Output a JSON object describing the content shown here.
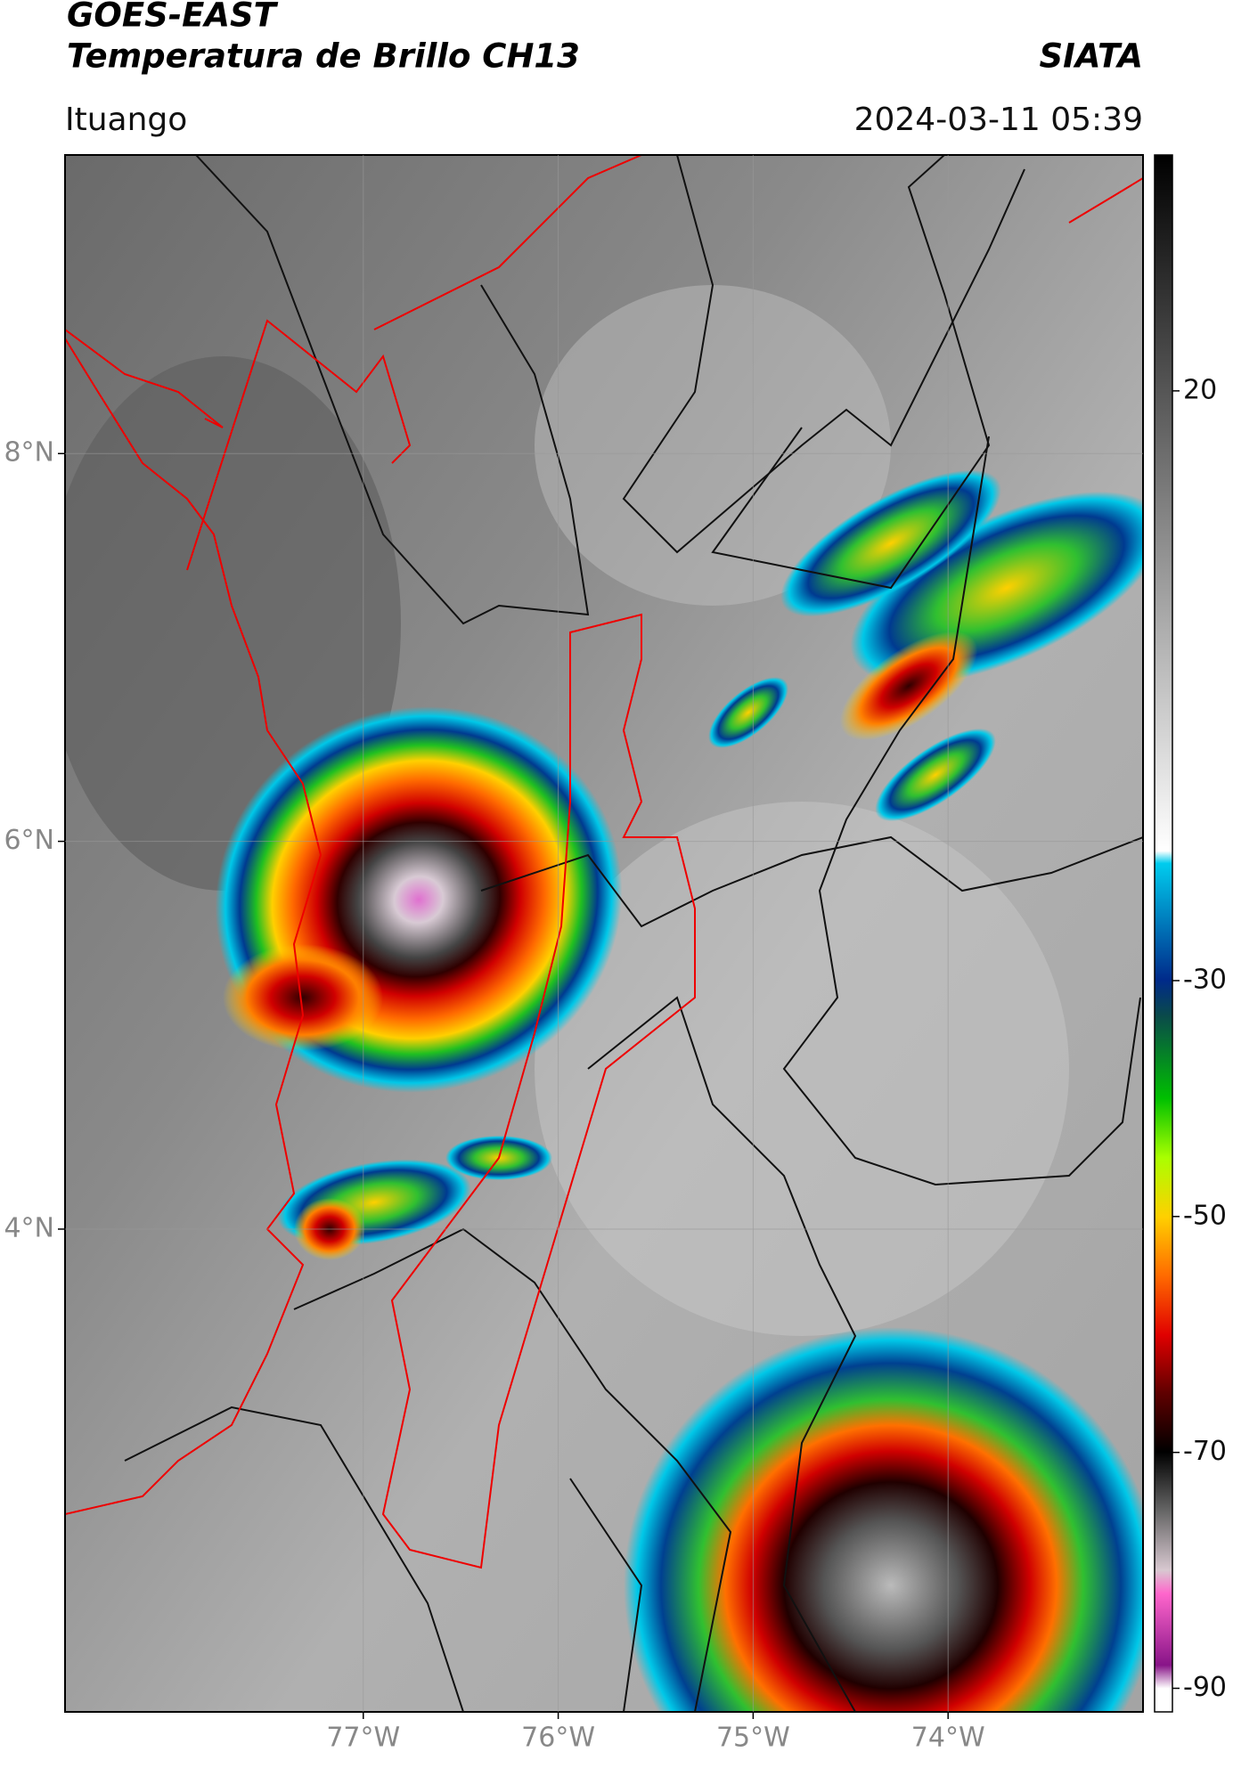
{
  "header": {
    "title": "GOES-EAST",
    "subtitle": "Temperatura de Brillo CH13",
    "credit": "SIATA",
    "location": "Ituango",
    "timestamp": "2024-03-11 05:39"
  },
  "map": {
    "xlim": [
      -78.53,
      -73.0
    ],
    "ylim": [
      1.51,
      9.54
    ],
    "xticks": [
      {
        "value": -77,
        "label": "77°W"
      },
      {
        "value": -76,
        "label": "76°W"
      },
      {
        "value": -75,
        "label": "75°W"
      },
      {
        "value": -74,
        "label": "74°W"
      }
    ],
    "yticks": [
      {
        "value": 8,
        "label": "8°N"
      },
      {
        "value": 6,
        "label": "6°N"
      },
      {
        "value": 4,
        "label": "4°N"
      }
    ],
    "grid": true
  },
  "colorbar": {
    "lim": [
      -92,
      40
    ],
    "ticks": [
      20,
      -30,
      -50,
      -70,
      -90
    ]
  }
}
